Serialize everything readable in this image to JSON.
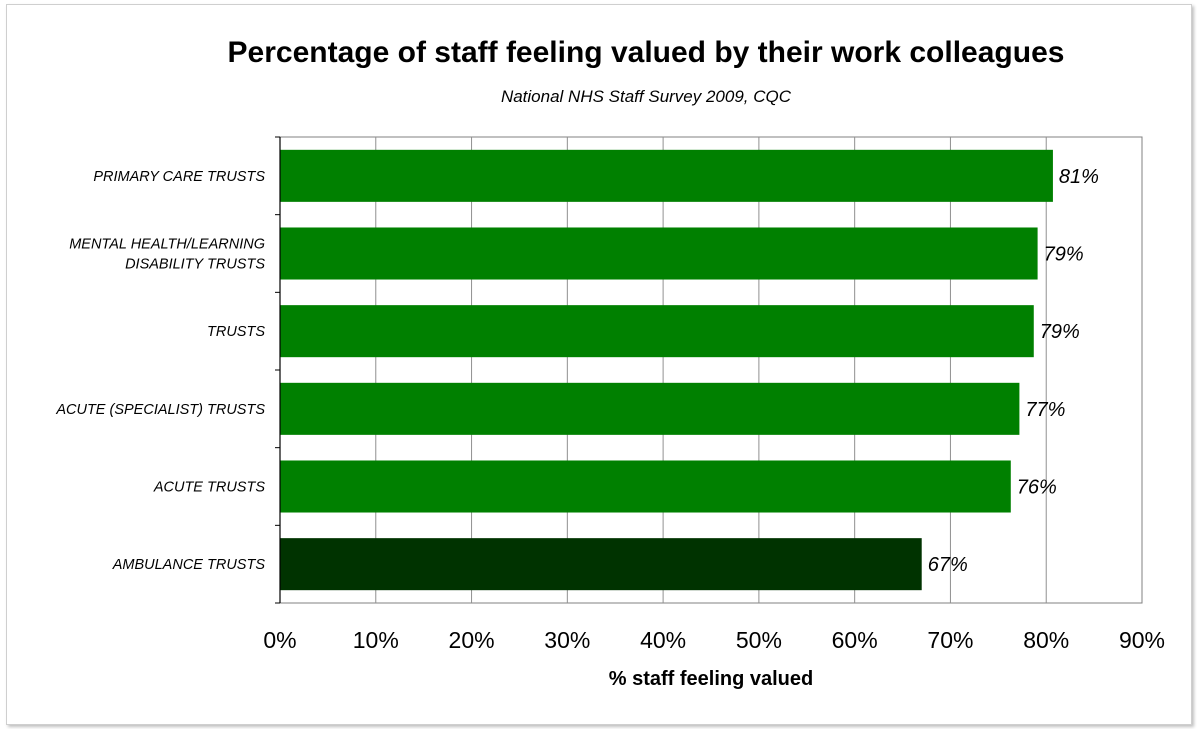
{
  "chart_data": {
    "type": "bar",
    "orientation": "horizontal",
    "title": "Percentage of staff feeling valued by their work colleagues",
    "subtitle": "National NHS Staff Survey 2009, CQC",
    "xlabel": "% staff feeling valued",
    "ylabel": "",
    "xlim": [
      0,
      90
    ],
    "x_ticks": [
      0,
      10,
      20,
      30,
      40,
      50,
      60,
      70,
      80,
      90
    ],
    "tick_suffix": "%",
    "grid": true,
    "categories": [
      [
        "PRIMARY CARE TRUSTS"
      ],
      [
        "MENTAL HEALTH/LEARNING",
        "DISABILITY TRUSTS"
      ],
      [
        "TRUSTS"
      ],
      [
        "ACUTE (SPECIALIST) TRUSTS"
      ],
      [
        "ACUTE TRUSTS"
      ],
      [
        "AMBULANCE TRUSTS"
      ]
    ],
    "values": [
      80.7,
      79.1,
      78.7,
      77.2,
      76.3,
      67
    ],
    "data_labels": [
      "81%",
      "79%",
      "79%",
      "77%",
      "76%",
      "67%"
    ],
    "colors": [
      "#008000",
      "#008000",
      "#008000",
      "#008000",
      "#008000",
      "#003300"
    ]
  }
}
